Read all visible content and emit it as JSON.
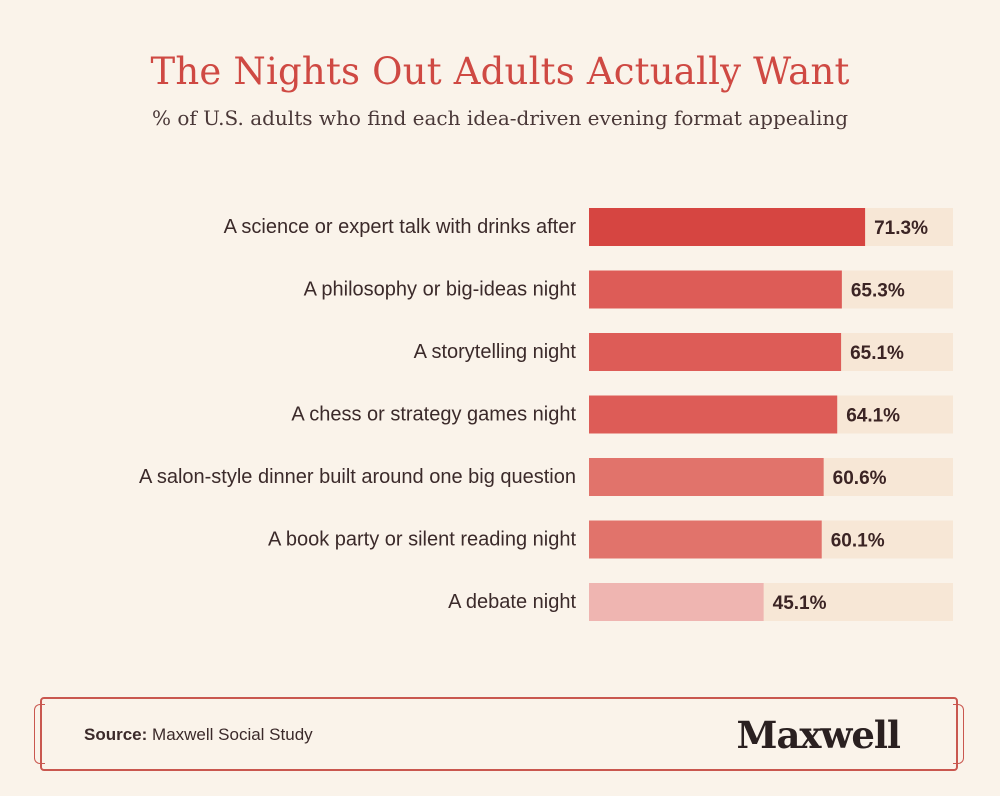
{
  "header": {
    "title": "The Nights Out Adults Actually Want",
    "subtitle": "% of U.S. adults who find each idea-driven evening format appealing"
  },
  "chart_data": {
    "type": "bar",
    "orientation": "horizontal",
    "categories": [
      "A science or expert talk with drinks after",
      "A philosophy or big-ideas night",
      "A storytelling night",
      "A chess or strategy games night",
      "A salon-style dinner built around one big question",
      "A book party or silent reading night",
      "A debate night"
    ],
    "values": [
      71.3,
      65.3,
      65.1,
      64.1,
      60.6,
      60.1,
      45.1
    ],
    "value_labels": [
      "71.3%",
      "65.3%",
      "65.1%",
      "64.1%",
      "60.6%",
      "60.1%",
      "45.1%"
    ],
    "xlim": [
      0,
      94
    ],
    "bar_colors": [
      "#d64541",
      "#dd5c57",
      "#dd5c57",
      "#dd5c57",
      "#e1736b",
      "#e1736b",
      "#efb5b1"
    ],
    "track_color": "#f7e7d6",
    "grid": false
  },
  "footer": {
    "source_label": "Source:",
    "source_text": "Maxwell Social Study",
    "brand": "Maxwell"
  }
}
